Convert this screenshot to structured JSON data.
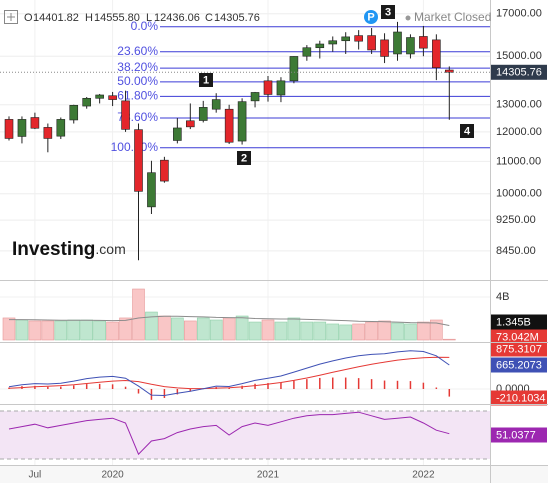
{
  "chart_data": [
    {
      "type": "candlestick",
      "header_keys": [
        "O",
        "H",
        "L",
        "C"
      ],
      "last_bar_labels": {
        "open": "14401.82",
        "high": "14555.80",
        "low": "12436.06",
        "close": "14305.76"
      },
      "status": "Market Closed",
      "badge": "P",
      "logo": "Investing",
      "logo_suffix": ".com",
      "annotations": [
        "1",
        "2",
        "3",
        "4"
      ],
      "categories": [
        null,
        null,
        "Jul",
        null,
        null,
        null,
        null,
        null,
        "2020",
        null,
        null,
        null,
        null,
        null,
        null,
        null,
        null,
        null,
        null,
        null,
        "2021",
        null,
        null,
        null,
        null,
        null,
        null,
        null,
        null,
        null,
        null,
        null,
        "2022",
        null,
        null
      ],
      "open": [
        12450,
        11840,
        12520,
        12160,
        11850,
        12430,
        12950,
        13250,
        13350,
        13150,
        12080,
        9620,
        11040,
        11700,
        12400,
        12410,
        12830,
        12830,
        11680,
        13150,
        13950,
        13380,
        13950,
        15000,
        15380,
        15550,
        15700,
        15940,
        15940,
        15740,
        15100,
        15100,
        15900,
        15740,
        14401.82
      ],
      "high": [
        12560,
        12560,
        12700,
        12300,
        12520,
        13000,
        13300,
        13420,
        13500,
        13550,
        12300,
        11020,
        11150,
        12500,
        13050,
        13150,
        13450,
        13000,
        13250,
        13500,
        14150,
        14100,
        15000,
        15500,
        15700,
        15900,
        16100,
        16200,
        16300,
        16050,
        16600,
        16000,
        16400,
        16000,
        14555.8
      ],
      "low": [
        11700,
        11600,
        12100,
        11300,
        11750,
        12300,
        12850,
        13050,
        12950,
        12000,
        8220,
        9420,
        10330,
        11600,
        12100,
        12340,
        12700,
        11580,
        11560,
        12900,
        13120,
        13100,
        13850,
        14800,
        14900,
        15200,
        15100,
        15300,
        15100,
        14700,
        14800,
        14900,
        15000,
        13980,
        12436.06
      ],
      "close": [
        11770,
        12450,
        12130,
        11770,
        12450,
        12980,
        13250,
        13380,
        13200,
        12090,
        10070,
        10640,
        10380,
        12140,
        12180,
        12900,
        13200,
        11640,
        13120,
        13480,
        13400,
        13950,
        14990,
        15380,
        15550,
        15700,
        15880,
        15680,
        15280,
        14990,
        16110,
        15850,
        15360,
        14500,
        14305.76
      ],
      "up_color": "#3d7a35",
      "down_color": "#e3262b",
      "log": true,
      "grid": true,
      "ylim": [
        7800,
        17600
      ],
      "yticks": [
        {
          "value": 17000,
          "label": "17000.00"
        },
        {
          "value": 15000,
          "label": "15000.00"
        },
        {
          "value": 13000,
          "label": "13000.00"
        },
        {
          "value": 12000,
          "label": "12000.00"
        },
        {
          "value": 11000,
          "label": "11000.00"
        },
        {
          "value": 10000,
          "label": "10000.00"
        },
        {
          "value": 9250,
          "label": "9250.00"
        },
        {
          "value": 8450,
          "label": "8450.00"
        }
      ],
      "fib_high": 16360,
      "fib_low": 11450,
      "fib_levels": [
        0,
        23.6,
        38.2,
        50,
        61.8,
        78.6,
        100
      ],
      "fib_labels": [
        "0.0%",
        "23.60%",
        "38.20%",
        "50.00%",
        "61.80%",
        "78.60%",
        "100.00%"
      ],
      "fib_color": "#3b3bd6"
    },
    {
      "type": "bar",
      "values": [
        2.05,
        1.86,
        1.77,
        1.77,
        1.77,
        1.86,
        1.86,
        1.77,
        1.67,
        2.05,
        4.74,
        2.6,
        2.23,
        2.05,
        1.77,
        2.05,
        1.86,
        2.05,
        2.23,
        1.67,
        1.86,
        1.67,
        2.05,
        1.67,
        1.67,
        1.49,
        1.4,
        1.49,
        1.67,
        1.77,
        1.58,
        1.49,
        1.67,
        1.86,
        0.073042
      ],
      "value_labels": [
        null,
        null,
        null,
        null,
        null,
        null,
        null,
        null,
        null,
        null,
        null,
        null,
        null,
        null,
        null,
        null,
        null,
        null,
        null,
        null,
        null,
        null,
        null,
        null,
        null,
        null,
        null,
        null,
        null,
        null,
        null,
        null,
        null,
        null,
        "73.042M"
      ],
      "ma": [
        1.9,
        1.9,
        1.88,
        1.86,
        1.84,
        1.83,
        1.83,
        1.82,
        1.8,
        1.82,
        2.05,
        2.15,
        2.2,
        2.2,
        2.18,
        2.15,
        2.1,
        2.08,
        2.07,
        2.0,
        1.98,
        1.95,
        1.95,
        1.92,
        1.88,
        1.84,
        1.8,
        1.75,
        1.72,
        1.7,
        1.66,
        1.62,
        1.6,
        1.58,
        1.345
      ],
      "ma_labels": [
        null,
        null,
        null,
        null,
        null,
        null,
        null,
        null,
        null,
        null,
        null,
        null,
        null,
        null,
        null,
        null,
        null,
        null,
        null,
        null,
        null,
        null,
        null,
        null,
        null,
        null,
        null,
        null,
        null,
        null,
        null,
        null,
        null,
        null,
        "1.345B"
      ],
      "up_color": "#bfe6cf",
      "down_color": "#f9c6c6",
      "ma_color": "#8c8c8c",
      "ylim": [
        0,
        5.3
      ],
      "yticks": [
        {
          "value": 4,
          "label": "4B"
        }
      ]
    },
    {
      "type": "macd",
      "macd": [
        60,
        120,
        150,
        140,
        160,
        220,
        290,
        330,
        350,
        300,
        80,
        -170,
        -180,
        -120,
        -60,
        10,
        80,
        70,
        150,
        240,
        300,
        360,
        470,
        580,
        690,
        780,
        860,
        920,
        960,
        980,
        1030,
        1060,
        1040,
        920,
        665.2073
      ],
      "signal": [
        20,
        40,
        62,
        78,
        94,
        119,
        153,
        188,
        220,
        236,
        205,
        130,
        68,
        30,
        12,
        12,
        26,
        35,
        58,
        94,
        135,
        180,
        238,
        306,
        383,
        462,
        542,
        618,
        686,
        745,
        802,
        840,
        865,
        878,
        875.3107
      ],
      "histogram": [
        40,
        80,
        88,
        62,
        66,
        101,
        137,
        142,
        130,
        64,
        -125,
        -300,
        -248,
        -150,
        -72,
        -2,
        54,
        35,
        92,
        146,
        165,
        180,
        232,
        274,
        307,
        318,
        318,
        302,
        274,
        235,
        228,
        220,
        175,
        42,
        -210.1034
      ],
      "macd_color": "#3f51b5",
      "signal_color": "#e53935",
      "histogram_color": "#e53935",
      "ylim": [
        -360,
        1220
      ],
      "yticks": [
        {
          "value": 0,
          "label": "0.0000"
        }
      ]
    },
    {
      "type": "line",
      "values": [
        55,
        57,
        59,
        56,
        58,
        60,
        62,
        63,
        64,
        60,
        34,
        45,
        47,
        52,
        55,
        57,
        58,
        50,
        57,
        60,
        58,
        61,
        64,
        66,
        67,
        67,
        68,
        69,
        66,
        63,
        64,
        65,
        60,
        54,
        51.0377
      ],
      "color": "#9c27b0",
      "band_color": "#f3e5f5",
      "levels": [
        30,
        70
      ],
      "ylim": [
        25,
        73.3
      ]
    }
  ]
}
